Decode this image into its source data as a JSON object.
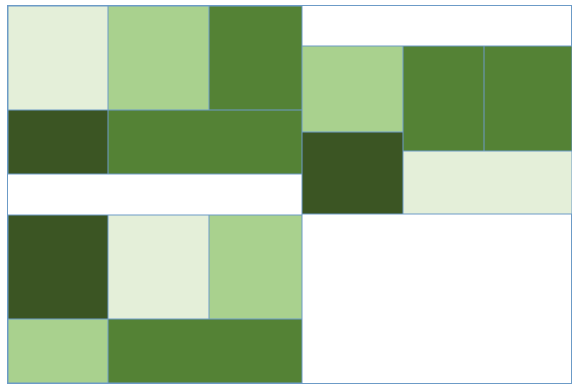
{
  "palette": {
    "pale": "#e4efd9",
    "light": "#a9d18e",
    "medium": "#548235",
    "dark": "#3b5523",
    "border": "#6c9bc7"
  },
  "frame": {
    "border_color": "#6c9bc7"
  },
  "groups": [
    {
      "name": "top-left-group",
      "tiles": [
        {
          "name": "tile-a1",
          "shade": "pale"
        },
        {
          "name": "tile-a2",
          "shade": "light"
        },
        {
          "name": "tile-a3",
          "shade": "medium"
        },
        {
          "name": "tile-a4",
          "shade": "dark"
        },
        {
          "name": "tile-a5",
          "shade": "medium"
        }
      ]
    },
    {
      "name": "top-right-group",
      "tiles": [
        {
          "name": "tile-b1",
          "shade": "light"
        },
        {
          "name": "tile-b2",
          "shade": "medium"
        },
        {
          "name": "tile-b3",
          "shade": "medium"
        },
        {
          "name": "tile-b4",
          "shade": "dark"
        },
        {
          "name": "tile-b5",
          "shade": "pale"
        }
      ]
    },
    {
      "name": "bottom-left-group",
      "tiles": [
        {
          "name": "tile-c1",
          "shade": "dark"
        },
        {
          "name": "tile-c2",
          "shade": "pale"
        },
        {
          "name": "tile-c3",
          "shade": "light"
        },
        {
          "name": "tile-c4",
          "shade": "light"
        },
        {
          "name": "tile-c5",
          "shade": "medium"
        }
      ]
    }
  ]
}
